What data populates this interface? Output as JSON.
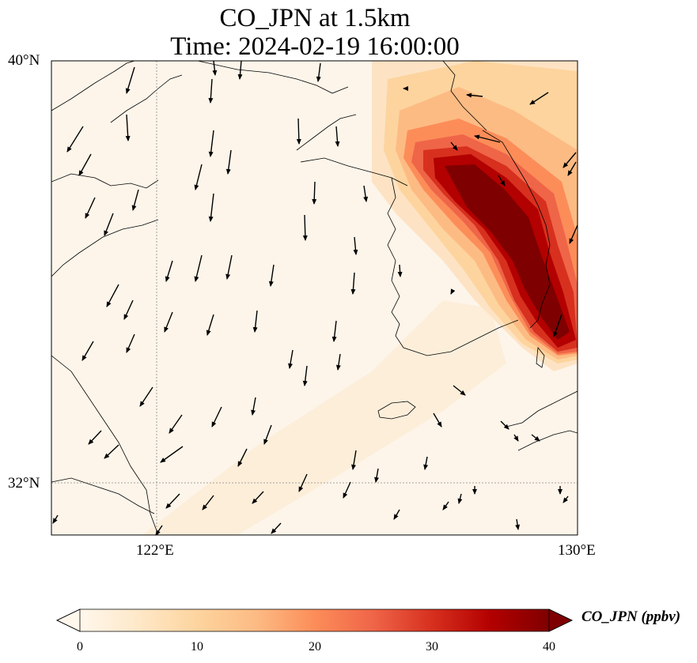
{
  "title": "CO_JPN at 1.5km",
  "subtitle": "Time: 2024-02-19 16:00:00",
  "axes": {
    "lat_labels": [
      "40°N",
      "32°N"
    ],
    "lon_labels": [
      "122°E",
      "130°E"
    ],
    "lat_range": [
      31,
      40
    ],
    "lon_range": [
      120,
      130
    ]
  },
  "colorbar": {
    "label": "CO_JPN (ppbv)",
    "ticks": [
      "0",
      "10",
      "20",
      "30",
      "40"
    ],
    "range": [
      0,
      40
    ],
    "extend": "both",
    "colormap": "OrRd",
    "colors": [
      "#fff7ec",
      "#fee8c8",
      "#fdd49e",
      "#fdbb84",
      "#fc8d59",
      "#ef6548",
      "#d7301f",
      "#b30000",
      "#7f0000"
    ]
  },
  "colors": {
    "coast": "#000000",
    "gridline": "#888888",
    "background": "#fdf5ea"
  },
  "plume": {
    "description_values": "Enhanced CO_JPN (up to >40 ppbv) along Korean east coast and Japan Sea; background ~1-5 ppbv over Yellow Sea"
  }
}
